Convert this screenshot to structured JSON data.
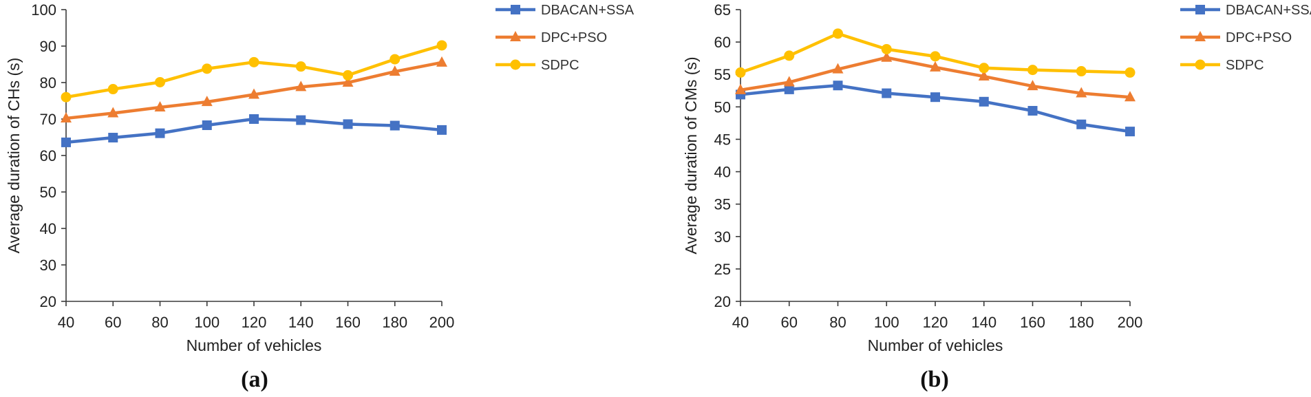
{
  "colors": {
    "DBACAN+SSA": "#4472c4",
    "DPC+PSO": "#ed7d31",
    "SDPC": "#ffc000"
  },
  "chart_data": [
    {
      "type": "line",
      "panel_label": "(a)",
      "xlabel": "Number of vehicles",
      "ylabel": "Average duration of CHs (s)",
      "x": [
        40,
        60,
        80,
        100,
        120,
        140,
        160,
        180,
        200
      ],
      "ylim": [
        20,
        100
      ],
      "yticks": [
        20,
        30,
        40,
        50,
        60,
        70,
        80,
        90,
        100
      ],
      "grid": false,
      "legend_position": "right",
      "series": [
        {
          "name": "DBACAN+SSA",
          "marker": "square",
          "values": [
            63.6,
            64.9,
            66.1,
            68.3,
            70.0,
            69.7,
            68.6,
            68.2,
            67.0
          ]
        },
        {
          "name": "DPC+PSO",
          "marker": "triangle",
          "values": [
            70.2,
            71.6,
            73.2,
            74.7,
            76.7,
            78.8,
            80.0,
            83.0,
            85.5
          ]
        },
        {
          "name": "SDPC",
          "marker": "circle",
          "values": [
            76.0,
            78.2,
            80.1,
            83.8,
            85.6,
            84.4,
            82.0,
            86.4,
            90.2
          ]
        }
      ]
    },
    {
      "type": "line",
      "panel_label": "(b)",
      "xlabel": "Number of vehicles",
      "ylabel": "Average duration of CMs (s)",
      "x": [
        40,
        60,
        80,
        100,
        120,
        140,
        160,
        180,
        200
      ],
      "ylim": [
        20,
        65
      ],
      "yticks": [
        20,
        25,
        30,
        35,
        40,
        45,
        50,
        55,
        60,
        65
      ],
      "grid": false,
      "legend_position": "right",
      "series": [
        {
          "name": "DBACAN+SSA",
          "marker": "square",
          "values": [
            51.9,
            52.7,
            53.3,
            52.1,
            51.5,
            50.8,
            49.4,
            47.3,
            46.2
          ]
        },
        {
          "name": "DPC+PSO",
          "marker": "triangle",
          "values": [
            52.6,
            53.8,
            55.8,
            57.6,
            56.1,
            54.7,
            53.2,
            52.1,
            51.5
          ]
        },
        {
          "name": "SDPC",
          "marker": "circle",
          "values": [
            55.3,
            57.9,
            61.3,
            58.9,
            57.8,
            56.0,
            55.7,
            55.5,
            55.3
          ]
        }
      ]
    }
  ]
}
